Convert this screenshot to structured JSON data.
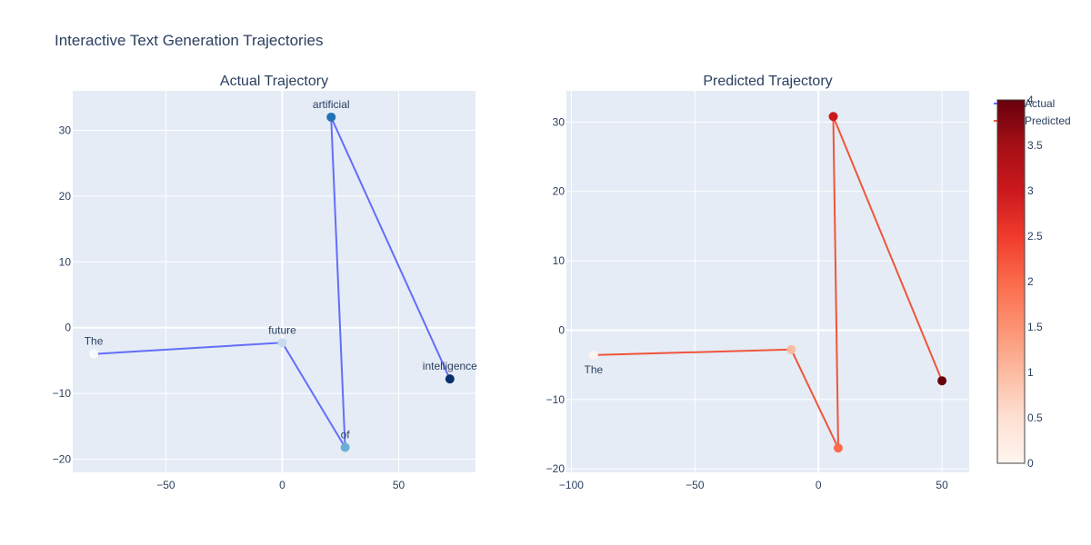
{
  "title": "Interactive Text Generation Trajectories",
  "chart_data": [
    {
      "type": "line",
      "subtitle": "Actual Trajectory",
      "mode": "lines+markers+text",
      "line_color": "#636efa",
      "colorscale": "Blues",
      "grid": true,
      "xlim": [
        -90,
        83
      ],
      "ylim": [
        -22,
        36
      ],
      "x_ticks": [
        -50,
        0,
        50
      ],
      "y_ticks": [
        -20,
        -10,
        0,
        10,
        20,
        30
      ],
      "points": [
        {
          "x": -81,
          "y": -4,
          "label": "The",
          "color_value": 0
        },
        {
          "x": 0,
          "y": -2.3,
          "label": "future",
          "color_value": 1
        },
        {
          "x": 27,
          "y": -18.2,
          "label": "of",
          "color_value": 2
        },
        {
          "x": 21,
          "y": 32,
          "label": "artificial",
          "color_value": 3
        },
        {
          "x": 72,
          "y": -7.8,
          "label": "intelligence",
          "color_value": 4
        }
      ]
    },
    {
      "type": "line",
      "subtitle": "Predicted Trajectory",
      "mode": "lines+markers+text",
      "line_color": "#ef553b",
      "colorscale": "Reds",
      "grid": true,
      "xlim": [
        -102,
        61
      ],
      "ylim": [
        -20.5,
        34.5
      ],
      "x_ticks": [
        -100,
        -50,
        0,
        50
      ],
      "y_ticks": [
        -20,
        -10,
        0,
        10,
        20,
        30
      ],
      "points": [
        {
          "x": -91,
          "y": -3.6,
          "label": "The",
          "color_value": 0
        },
        {
          "x": -11,
          "y": -2.8,
          "label": "",
          "color_value": 1
        },
        {
          "x": 8,
          "y": -17,
          "label": "",
          "color_value": 2
        },
        {
          "x": 6,
          "y": 30.8,
          "label": "",
          "color_value": 3
        },
        {
          "x": 50,
          "y": -7.3,
          "label": "",
          "color_value": 4
        }
      ]
    }
  ],
  "legend": {
    "placement": "right",
    "items": [
      {
        "label": "Actual",
        "color": "#636efa"
      },
      {
        "label": "Predicted",
        "color": "#ef553b"
      }
    ]
  },
  "colorbar": {
    "colorscale": "Reds",
    "range": [
      0,
      4
    ],
    "ticks": [
      "0",
      "0.5",
      "1",
      "1.5",
      "2",
      "2.5",
      "3",
      "3.5",
      "4"
    ]
  },
  "colors": {
    "plot_bg": "#e5ecf6",
    "grid": "#ffffff",
    "text": "#2a3f5f"
  }
}
